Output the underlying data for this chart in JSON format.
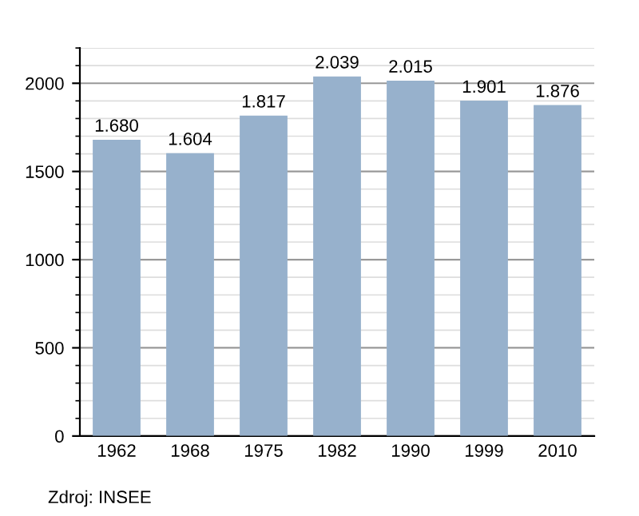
{
  "chart_data": {
    "type": "bar",
    "categories": [
      "1962",
      "1968",
      "1975",
      "1982",
      "1990",
      "1999",
      "2010"
    ],
    "values": [
      1680,
      1604,
      1817,
      2039,
      2015,
      1901,
      1876
    ],
    "value_labels": [
      "1.680",
      "1.604",
      "1.817",
      "2.039",
      "2.015",
      "1.901",
      "1.876"
    ],
    "color": "#97b1cc",
    "ylim": [
      0,
      2200
    ],
    "yticks": [
      0,
      500,
      1000,
      1500,
      2000
    ],
    "grid": "y",
    "annotations": [
      "Zdroj: INSEE"
    ]
  }
}
